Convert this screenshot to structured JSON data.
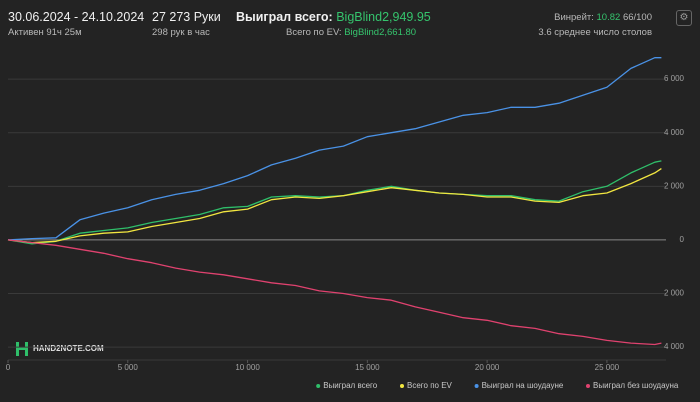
{
  "header": {
    "dates": "30.06.2024 - 24.10.2024",
    "active": "Активен 91ч 25м",
    "hands": "27 273 Руки",
    "hands_per_hour": "298 рук в час",
    "won_label": "Выиграл всего:",
    "won_value": "BigBlind2,949.95",
    "ev_label": "Всего по EV:",
    "ev_value": "BigBlind2,661.80",
    "winrate_label": "Винрейт:",
    "winrate_value": "10.82",
    "winrate_unit": "66/100",
    "tables": "3.6 среднее число столов"
  },
  "chart_data": {
    "type": "line",
    "watermark": "HAND2NOTE.COM",
    "x": [
      0,
      1000,
      2000,
      3000,
      4000,
      5000,
      6000,
      7000,
      8000,
      9000,
      10000,
      11000,
      12000,
      13000,
      14000,
      15000,
      16000,
      17000,
      18000,
      19000,
      20000,
      21000,
      22000,
      23000,
      24000,
      25000,
      26000,
      27000,
      27273
    ],
    "xlim": [
      0,
      27300
    ],
    "xticks": [
      0,
      {
        "value": 5000,
        "label": "5 000"
      },
      {
        "value": 10000,
        "label": "10 000"
      },
      {
        "value": 15000,
        "label": "15 000"
      },
      {
        "value": 20000,
        "label": "20 000"
      },
      {
        "value": 25000,
        "label": "25 000"
      }
    ],
    "ylim": [
      -4480,
      6900
    ],
    "yticks": [
      {
        "value": -4000,
        "label": "4 000"
      },
      {
        "value": -2000,
        "label": "2 000"
      },
      0,
      {
        "value": 2000,
        "label": "2 000"
      },
      {
        "value": 4000,
        "label": "4 000"
      },
      {
        "value": 6000,
        "label": "6 000"
      }
    ],
    "grid": true,
    "legend": "bottom-right",
    "series": [
      {
        "name": "Выиграл всего",
        "color": "#2fbf6a",
        "values": [
          0,
          -150,
          -50,
          250,
          350,
          450,
          650,
          800,
          950,
          1200,
          1250,
          1600,
          1650,
          1600,
          1650,
          1850,
          2000,
          1850,
          1750,
          1700,
          1650,
          1650,
          1500,
          1450,
          1800,
          2000,
          2500,
          2900,
          2950
        ]
      },
      {
        "name": "Всего по EV",
        "color": "#f2e640",
        "values": [
          0,
          -100,
          -50,
          150,
          250,
          300,
          500,
          650,
          800,
          1050,
          1150,
          1500,
          1600,
          1550,
          1650,
          1800,
          1950,
          1850,
          1750,
          1700,
          1600,
          1600,
          1450,
          1400,
          1650,
          1750,
          2100,
          2500,
          2662
        ]
      },
      {
        "name": "Выиграл на шоудауне",
        "color": "#4a92e6",
        "values": [
          0,
          50,
          80,
          750,
          1000,
          1200,
          1500,
          1700,
          1850,
          2100,
          2400,
          2800,
          3050,
          3350,
          3500,
          3850,
          4000,
          4150,
          4400,
          4650,
          4750,
          4950,
          4950,
          5100,
          5400,
          5700,
          6400,
          6800,
          6800
        ]
      },
      {
        "name": "Выиграл без шоудауна",
        "color": "#e0426f",
        "values": [
          0,
          -100,
          -200,
          -350,
          -500,
          -700,
          -850,
          -1050,
          -1200,
          -1300,
          -1450,
          -1600,
          -1700,
          -1900,
          -2000,
          -2150,
          -2250,
          -2500,
          -2700,
          -2900,
          -3000,
          -3200,
          -3300,
          -3500,
          -3600,
          -3750,
          -3850,
          -3900,
          -3850
        ]
      }
    ]
  }
}
